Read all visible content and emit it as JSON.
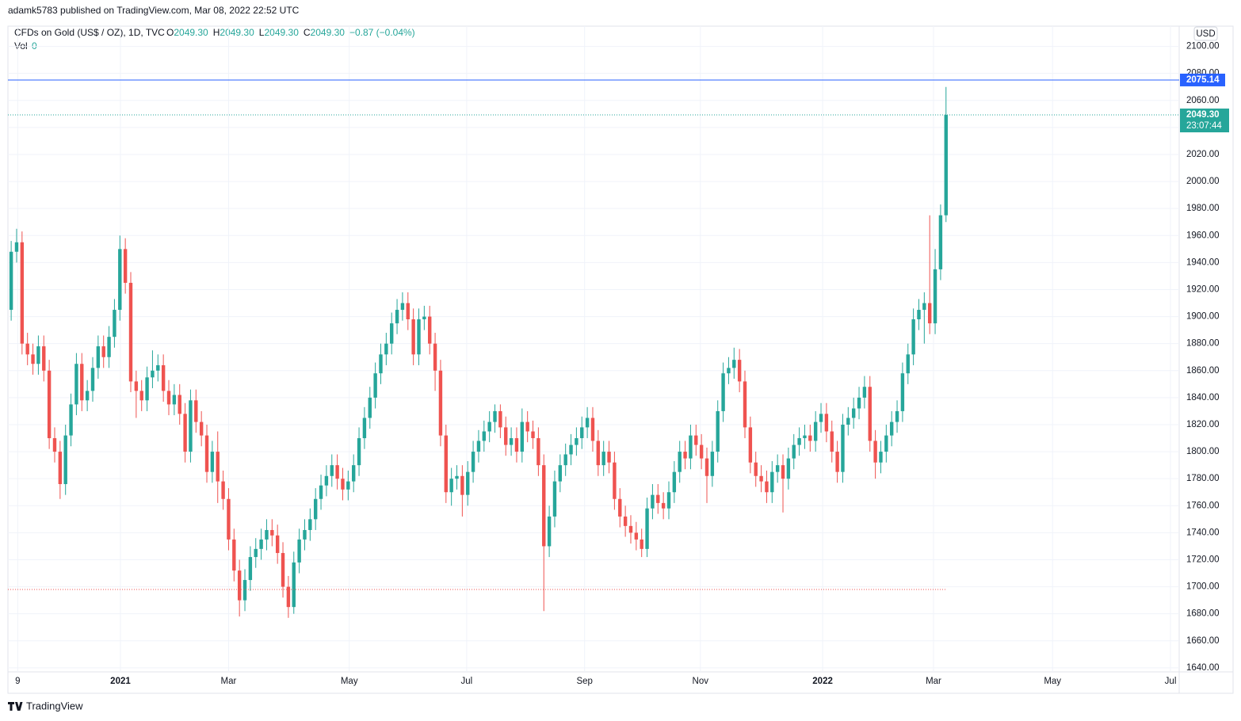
{
  "header": {
    "published": "adamk5783 published on TradingView.com, Mar 08, 2022 22:52 UTC"
  },
  "footer": {
    "brand": "TradingView"
  },
  "chart_data": {
    "type": "candlestick",
    "symbol": "CFDs on Gold (US$ / OZ), 1D, TVC",
    "legend": {
      "o_label": "O",
      "o": "2049.30",
      "h_label": "H",
      "h": "2049.30",
      "l_label": "L",
      "l": "2049.30",
      "c_label": "C",
      "c": "2049.30",
      "change": "−0.87 (−0.04%)",
      "vol_label": "Vol",
      "vol": "0"
    },
    "currency": "USD",
    "up_color": "#26a69a",
    "down_color": "#ef5350",
    "price_line": {
      "value": 2075.14,
      "label": "2075.14",
      "color": "#2962ff"
    },
    "last_price": {
      "value": 2049.3,
      "label": "2049.30",
      "countdown": "23:07:44"
    },
    "low_line": 1698,
    "xlim": [
      -0.6,
      214.9
    ],
    "ylim": [
      1637,
      2115
    ],
    "xticks": [
      {
        "value": 1.2,
        "label": "9"
      },
      {
        "value": 20.1,
        "label": "2021"
      },
      {
        "value": 40.0,
        "label": "Mar"
      },
      {
        "value": 62.2,
        "label": "May"
      },
      {
        "value": 83.8,
        "label": "Jul"
      },
      {
        "value": 105.5,
        "label": "Sep"
      },
      {
        "value": 126.8,
        "label": "Nov"
      },
      {
        "value": 149.3,
        "label": "2022"
      },
      {
        "value": 169.7,
        "label": "Mar"
      },
      {
        "value": 191.6,
        "label": "May"
      },
      {
        "value": 213.3,
        "label": "Jul"
      }
    ],
    "yticks": [
      {
        "value": 1640,
        "label": "1640.00"
      },
      {
        "value": 1660,
        "label": "1660.00"
      },
      {
        "value": 1680,
        "label": "1680.00"
      },
      {
        "value": 1700,
        "label": "1700.00"
      },
      {
        "value": 1720,
        "label": "1720.00"
      },
      {
        "value": 1740,
        "label": "1740.00"
      },
      {
        "value": 1760,
        "label": "1760.00"
      },
      {
        "value": 1780,
        "label": "1780.00"
      },
      {
        "value": 1800,
        "label": "1800.00"
      },
      {
        "value": 1820,
        "label": "1820.00"
      },
      {
        "value": 1840,
        "label": "1840.00"
      },
      {
        "value": 1860,
        "label": "1860.00"
      },
      {
        "value": 1880,
        "label": "1880.00"
      },
      {
        "value": 1900,
        "label": "1900.00"
      },
      {
        "value": 1920,
        "label": "1920.00"
      },
      {
        "value": 1940,
        "label": "1940.00"
      },
      {
        "value": 1960,
        "label": "1960.00"
      },
      {
        "value": 1980,
        "label": "1980.00"
      },
      {
        "value": 2000,
        "label": "2000.00"
      },
      {
        "value": 2020,
        "label": "2020.00"
      },
      {
        "value": 2040,
        "label": "2040.00"
      },
      {
        "value": 2060,
        "label": "2060.00"
      },
      {
        "value": 2080,
        "label": "2080.00"
      },
      {
        "value": 2100,
        "label": "2100.00"
      }
    ],
    "grid": true,
    "ohlc": [
      [
        1905,
        1956,
        1897,
        1948
      ],
      [
        1948,
        1965,
        1940,
        1955
      ],
      [
        1955,
        1963,
        1872,
        1880
      ],
      [
        1880,
        1888,
        1864,
        1872
      ],
      [
        1872,
        1880,
        1857,
        1865
      ],
      [
        1865,
        1886,
        1857,
        1878
      ],
      [
        1878,
        1886,
        1852,
        1860
      ],
      [
        1860,
        1868,
        1802,
        1810
      ],
      [
        1810,
        1818,
        1792,
        1800
      ],
      [
        1800,
        1808,
        1765,
        1776
      ],
      [
        1776,
        1820,
        1768,
        1812
      ],
      [
        1812,
        1843,
        1804,
        1835
      ],
      [
        1835,
        1873,
        1827,
        1865
      ],
      [
        1865,
        1873,
        1830,
        1838
      ],
      [
        1838,
        1853,
        1830,
        1845
      ],
      [
        1845,
        1870,
        1837,
        1862
      ],
      [
        1862,
        1886,
        1854,
        1878
      ],
      [
        1878,
        1886,
        1862,
        1870
      ],
      [
        1870,
        1893,
        1862,
        1885
      ],
      [
        1885,
        1913,
        1877,
        1905
      ],
      [
        1905,
        1960,
        1897,
        1950
      ],
      [
        1950,
        1958,
        1917,
        1925
      ],
      [
        1925,
        1933,
        1844,
        1852
      ],
      [
        1852,
        1860,
        1825,
        1845
      ],
      [
        1845,
        1853,
        1830,
        1838
      ],
      [
        1838,
        1863,
        1830,
        1855
      ],
      [
        1855,
        1875,
        1847,
        1860
      ],
      [
        1860,
        1872,
        1852,
        1864
      ],
      [
        1864,
        1872,
        1837,
        1845
      ],
      [
        1845,
        1853,
        1827,
        1835
      ],
      [
        1835,
        1850,
        1827,
        1842
      ],
      [
        1842,
        1850,
        1820,
        1828
      ],
      [
        1828,
        1836,
        1792,
        1800
      ],
      [
        1800,
        1846,
        1792,
        1838
      ],
      [
        1838,
        1846,
        1814,
        1822
      ],
      [
        1822,
        1830,
        1804,
        1812
      ],
      [
        1812,
        1820,
        1777,
        1785
      ],
      [
        1785,
        1808,
        1777,
        1800
      ],
      [
        1800,
        1815,
        1762,
        1778
      ],
      [
        1778,
        1786,
        1757,
        1765
      ],
      [
        1765,
        1773,
        1727,
        1735
      ],
      [
        1735,
        1743,
        1704,
        1712
      ],
      [
        1712,
        1720,
        1678,
        1690
      ],
      [
        1690,
        1713,
        1682,
        1705
      ],
      [
        1705,
        1730,
        1697,
        1722
      ],
      [
        1722,
        1736,
        1714,
        1728
      ],
      [
        1728,
        1743,
        1720,
        1735
      ],
      [
        1735,
        1750,
        1727,
        1742
      ],
      [
        1742,
        1750,
        1730,
        1738
      ],
      [
        1738,
        1746,
        1717,
        1725
      ],
      [
        1725,
        1733,
        1692,
        1700
      ],
      [
        1700,
        1708,
        1677,
        1685
      ],
      [
        1685,
        1726,
        1680,
        1718
      ],
      [
        1718,
        1743,
        1710,
        1735
      ],
      [
        1735,
        1750,
        1727,
        1742
      ],
      [
        1742,
        1758,
        1734,
        1750
      ],
      [
        1750,
        1773,
        1742,
        1765
      ],
      [
        1765,
        1783,
        1757,
        1775
      ],
      [
        1775,
        1790,
        1767,
        1782
      ],
      [
        1782,
        1798,
        1774,
        1790
      ],
      [
        1790,
        1798,
        1772,
        1780
      ],
      [
        1780,
        1788,
        1764,
        1772
      ],
      [
        1772,
        1786,
        1764,
        1778
      ],
      [
        1778,
        1798,
        1770,
        1790
      ],
      [
        1790,
        1818,
        1782,
        1810
      ],
      [
        1810,
        1833,
        1802,
        1825
      ],
      [
        1825,
        1848,
        1817,
        1840
      ],
      [
        1840,
        1866,
        1832,
        1858
      ],
      [
        1858,
        1880,
        1850,
        1872
      ],
      [
        1872,
        1888,
        1864,
        1880
      ],
      [
        1880,
        1903,
        1872,
        1895
      ],
      [
        1895,
        1913,
        1887,
        1905
      ],
      [
        1905,
        1918,
        1897,
        1910
      ],
      [
        1910,
        1918,
        1890,
        1898
      ],
      [
        1898,
        1906,
        1864,
        1872
      ],
      [
        1872,
        1906,
        1864,
        1898
      ],
      [
        1898,
        1908,
        1890,
        1900
      ],
      [
        1900,
        1908,
        1872,
        1880
      ],
      [
        1880,
        1888,
        1845,
        1860
      ],
      [
        1860,
        1868,
        1804,
        1812
      ],
      [
        1812,
        1820,
        1762,
        1770
      ],
      [
        1770,
        1788,
        1760,
        1780
      ],
      [
        1780,
        1790,
        1772,
        1782
      ],
      [
        1782,
        1790,
        1752,
        1768
      ],
      [
        1768,
        1793,
        1760,
        1785
      ],
      [
        1785,
        1808,
        1777,
        1800
      ],
      [
        1800,
        1816,
        1792,
        1808
      ],
      [
        1808,
        1823,
        1800,
        1815
      ],
      [
        1815,
        1830,
        1807,
        1822
      ],
      [
        1822,
        1835,
        1814,
        1830
      ],
      [
        1830,
        1835,
        1810,
        1818
      ],
      [
        1818,
        1826,
        1797,
        1805
      ],
      [
        1805,
        1818,
        1797,
        1810
      ],
      [
        1810,
        1818,
        1792,
        1800
      ],
      [
        1800,
        1832,
        1792,
        1822
      ],
      [
        1822,
        1830,
        1807,
        1815
      ],
      [
        1815,
        1823,
        1802,
        1810
      ],
      [
        1810,
        1818,
        1782,
        1790
      ],
      [
        1790,
        1798,
        1682,
        1730
      ],
      [
        1730,
        1760,
        1722,
        1752
      ],
      [
        1752,
        1786,
        1744,
        1778
      ],
      [
        1778,
        1798,
        1770,
        1790
      ],
      [
        1790,
        1806,
        1782,
        1798
      ],
      [
        1798,
        1813,
        1790,
        1805
      ],
      [
        1805,
        1818,
        1797,
        1810
      ],
      [
        1810,
        1826,
        1802,
        1818
      ],
      [
        1818,
        1833,
        1810,
        1825
      ],
      [
        1825,
        1833,
        1800,
        1808
      ],
      [
        1808,
        1816,
        1782,
        1790
      ],
      [
        1790,
        1808,
        1782,
        1800
      ],
      [
        1800,
        1808,
        1784,
        1792
      ],
      [
        1792,
        1800,
        1757,
        1765
      ],
      [
        1765,
        1773,
        1744,
        1752
      ],
      [
        1752,
        1760,
        1737,
        1745
      ],
      [
        1745,
        1753,
        1732,
        1740
      ],
      [
        1740,
        1748,
        1727,
        1735
      ],
      [
        1735,
        1743,
        1722,
        1728
      ],
      [
        1728,
        1766,
        1722,
        1758
      ],
      [
        1758,
        1776,
        1750,
        1768
      ],
      [
        1768,
        1776,
        1754,
        1762
      ],
      [
        1762,
        1770,
        1750,
        1758
      ],
      [
        1758,
        1778,
        1750,
        1770
      ],
      [
        1770,
        1793,
        1762,
        1785
      ],
      [
        1785,
        1808,
        1777,
        1800
      ],
      [
        1800,
        1808,
        1787,
        1795
      ],
      [
        1795,
        1820,
        1787,
        1812
      ],
      [
        1812,
        1820,
        1797,
        1805
      ],
      [
        1805,
        1813,
        1787,
        1795
      ],
      [
        1795,
        1803,
        1762,
        1782
      ],
      [
        1782,
        1808,
        1774,
        1800
      ],
      [
        1800,
        1838,
        1792,
        1830
      ],
      [
        1830,
        1866,
        1822,
        1858
      ],
      [
        1858,
        1870,
        1850,
        1862
      ],
      [
        1862,
        1877,
        1854,
        1868
      ],
      [
        1868,
        1876,
        1844,
        1852
      ],
      [
        1852,
        1860,
        1810,
        1818
      ],
      [
        1818,
        1826,
        1784,
        1792
      ],
      [
        1792,
        1800,
        1774,
        1782
      ],
      [
        1782,
        1790,
        1770,
        1778
      ],
      [
        1778,
        1786,
        1762,
        1770
      ],
      [
        1770,
        1793,
        1762,
        1785
      ],
      [
        1785,
        1798,
        1777,
        1790
      ],
      [
        1790,
        1798,
        1755,
        1780
      ],
      [
        1780,
        1803,
        1772,
        1795
      ],
      [
        1795,
        1813,
        1787,
        1805
      ],
      [
        1805,
        1818,
        1797,
        1810
      ],
      [
        1810,
        1820,
        1802,
        1812
      ],
      [
        1812,
        1820,
        1800,
        1808
      ],
      [
        1808,
        1830,
        1800,
        1822
      ],
      [
        1822,
        1836,
        1814,
        1828
      ],
      [
        1828,
        1836,
        1807,
        1815
      ],
      [
        1815,
        1823,
        1792,
        1800
      ],
      [
        1800,
        1808,
        1777,
        1785
      ],
      [
        1785,
        1828,
        1777,
        1820
      ],
      [
        1820,
        1833,
        1812,
        1825
      ],
      [
        1825,
        1840,
        1817,
        1832
      ],
      [
        1832,
        1848,
        1824,
        1840
      ],
      [
        1840,
        1856,
        1832,
        1848
      ],
      [
        1848,
        1856,
        1800,
        1808
      ],
      [
        1808,
        1816,
        1780,
        1792
      ],
      [
        1792,
        1808,
        1784,
        1800
      ],
      [
        1800,
        1820,
        1792,
        1812
      ],
      [
        1812,
        1830,
        1804,
        1822
      ],
      [
        1822,
        1838,
        1814,
        1830
      ],
      [
        1830,
        1866,
        1822,
        1858
      ],
      [
        1858,
        1880,
        1850,
        1872
      ],
      [
        1872,
        1906,
        1864,
        1898
      ],
      [
        1898,
        1913,
        1890,
        1905
      ],
      [
        1905,
        1918,
        1880,
        1910
      ],
      [
        1910,
        1975,
        1887,
        1895
      ],
      [
        1895,
        1950,
        1887,
        1935
      ],
      [
        1935,
        1983,
        1927,
        1975
      ],
      [
        1975,
        2070,
        1970,
        2049.3
      ]
    ]
  }
}
